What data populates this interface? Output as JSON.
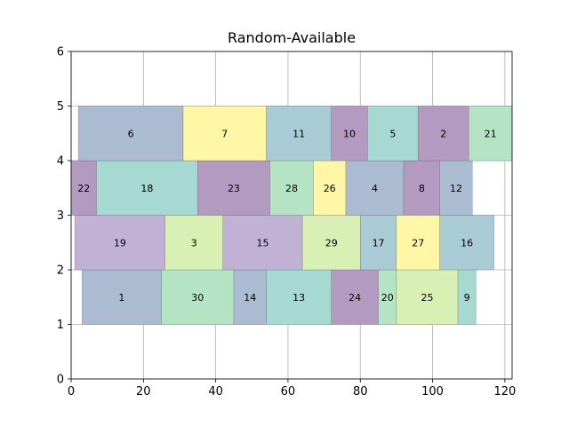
{
  "chart_data": {
    "type": "bar",
    "orientation": "horizontal",
    "title": "Random-Available",
    "xlabel": "",
    "ylabel": "",
    "xlim": [
      0,
      122
    ],
    "ylim": [
      0,
      6
    ],
    "x_ticks": [
      0,
      20,
      40,
      60,
      80,
      100,
      120
    ],
    "y_ticks": [
      0,
      1,
      2,
      3,
      4,
      5,
      6
    ],
    "grid": true,
    "blocks": [
      {
        "label": "1",
        "row": 1,
        "start": 3,
        "end": 25,
        "color": "#aabbd2"
      },
      {
        "label": "30",
        "row": 1,
        "start": 25,
        "end": 45,
        "color": "#b5e4c4"
      },
      {
        "label": "14",
        "row": 1,
        "start": 45,
        "end": 54,
        "color": "#aabbd2"
      },
      {
        "label": "13",
        "row": 1,
        "start": 54,
        "end": 72,
        "color": "#a6d9d1"
      },
      {
        "label": "24",
        "row": 1,
        "start": 72,
        "end": 85,
        "color": "#b39ac0"
      },
      {
        "label": "20",
        "row": 1,
        "start": 85,
        "end": 90,
        "color": "#b5e4c4"
      },
      {
        "label": "25",
        "row": 1,
        "start": 90,
        "end": 107,
        "color": "#d9f0b4"
      },
      {
        "label": "9",
        "row": 1,
        "start": 107,
        "end": 112,
        "color": "#a6d9d1"
      },
      {
        "label": "19",
        "row": 2,
        "start": 1,
        "end": 26,
        "color": "#c0b1d5"
      },
      {
        "label": "3",
        "row": 2,
        "start": 26,
        "end": 42,
        "color": "#d9f0b4"
      },
      {
        "label": "15",
        "row": 2,
        "start": 42,
        "end": 64,
        "color": "#c0b1d5"
      },
      {
        "label": "29",
        "row": 2,
        "start": 64,
        "end": 80,
        "color": "#d9f0b4"
      },
      {
        "label": "17",
        "row": 2,
        "start": 80,
        "end": 90,
        "color": "#a8cbd6"
      },
      {
        "label": "27",
        "row": 2,
        "start": 90,
        "end": 102,
        "color": "#fff7a6"
      },
      {
        "label": "16",
        "row": 2,
        "start": 102,
        "end": 117,
        "color": "#a8cbd6"
      },
      {
        "label": "22",
        "row": 3,
        "start": 0,
        "end": 7,
        "color": "#b39ac0"
      },
      {
        "label": "18",
        "row": 3,
        "start": 7,
        "end": 35,
        "color": "#a6d9d1"
      },
      {
        "label": "23",
        "row": 3,
        "start": 35,
        "end": 55,
        "color": "#b39ac0"
      },
      {
        "label": "28",
        "row": 3,
        "start": 55,
        "end": 67,
        "color": "#b5e4c4"
      },
      {
        "label": "26",
        "row": 3,
        "start": 67,
        "end": 76,
        "color": "#fff7a6"
      },
      {
        "label": "4",
        "row": 3,
        "start": 76,
        "end": 92,
        "color": "#aabbd2"
      },
      {
        "label": "8",
        "row": 3,
        "start": 92,
        "end": 102,
        "color": "#b39ac0"
      },
      {
        "label": "12",
        "row": 3,
        "start": 102,
        "end": 111,
        "color": "#aabbd2"
      },
      {
        "label": "6",
        "row": 4,
        "start": 2,
        "end": 31,
        "color": "#aabbd2"
      },
      {
        "label": "7",
        "row": 4,
        "start": 31,
        "end": 54,
        "color": "#fff7a6"
      },
      {
        "label": "11",
        "row": 4,
        "start": 54,
        "end": 72,
        "color": "#a8cbd6"
      },
      {
        "label": "10",
        "row": 4,
        "start": 72,
        "end": 82,
        "color": "#b39ac0"
      },
      {
        "label": "5",
        "row": 4,
        "start": 82,
        "end": 96,
        "color": "#a6d9d1"
      },
      {
        "label": "2",
        "row": 4,
        "start": 96,
        "end": 110,
        "color": "#b39ac0"
      },
      {
        "label": "21",
        "row": 4,
        "start": 110,
        "end": 122,
        "color": "#b5e4c4"
      }
    ]
  }
}
